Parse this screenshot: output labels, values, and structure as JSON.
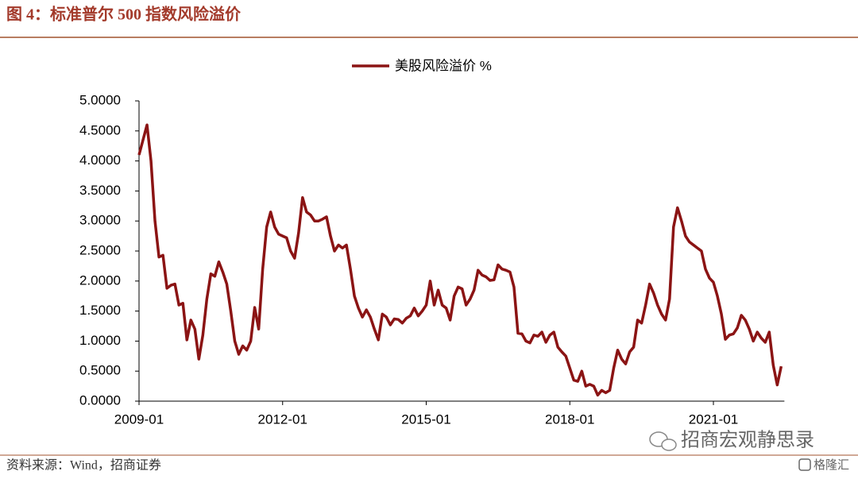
{
  "chart_data": {
    "type": "line",
    "title": "图 4：标准普尔 500 指数风险溢价",
    "source": "资料来源：Wind，招商证券",
    "watermark": "招商宏观静思录",
    "logo_text": "格隆汇",
    "categories": [
      "2009-01",
      null,
      null,
      null,
      null,
      null,
      null,
      null,
      null,
      null,
      null,
      null,
      null,
      null,
      null,
      null,
      null,
      null,
      null,
      null,
      null,
      null,
      null,
      null,
      null,
      null,
      null,
      null,
      null,
      null,
      null,
      null,
      null,
      null,
      null,
      null,
      "2012-01",
      null,
      null,
      null,
      null,
      null,
      null,
      null,
      null,
      null,
      null,
      null,
      null,
      null,
      null,
      null,
      null,
      null,
      null,
      null,
      null,
      null,
      null,
      null,
      null,
      null,
      null,
      null,
      null,
      null,
      null,
      null,
      null,
      null,
      null,
      null,
      "2015-01",
      null,
      null,
      null,
      null,
      null,
      null,
      null,
      null,
      null,
      null,
      null,
      null,
      null,
      null,
      null,
      null,
      null,
      null,
      null,
      null,
      null,
      null,
      null,
      null,
      null,
      null,
      null,
      null,
      null,
      null,
      null,
      null,
      null,
      null,
      null,
      "2018-01",
      null,
      null,
      null,
      null,
      null,
      null,
      null,
      null,
      null,
      null,
      null,
      null,
      null,
      null,
      null,
      null,
      null,
      null,
      null,
      null,
      null,
      null,
      null,
      null,
      null,
      null,
      null,
      null,
      null,
      null,
      null,
      null,
      null,
      null,
      null,
      "2021-01",
      null,
      null,
      null,
      null,
      null,
      null,
      null,
      null,
      null,
      null,
      null,
      null,
      null,
      null,
      null,
      null,
      null
    ],
    "series": [
      {
        "name": "美股风险溢价 %",
        "color": "#8b1414",
        "values": [
          4.1,
          4.35,
          4.6,
          4.0,
          3.0,
          2.4,
          2.43,
          1.88,
          1.93,
          1.95,
          1.6,
          1.63,
          1.02,
          1.35,
          1.2,
          0.7,
          1.1,
          1.7,
          2.12,
          2.08,
          2.32,
          2.15,
          1.95,
          1.5,
          1.0,
          0.78,
          0.92,
          0.85,
          1.0,
          1.56,
          1.2,
          2.2,
          2.9,
          3.15,
          2.9,
          2.78,
          2.75,
          2.72,
          2.5,
          2.38,
          2.8,
          3.39,
          3.15,
          3.1,
          3.0,
          3.0,
          3.03,
          3.07,
          2.75,
          2.5,
          2.6,
          2.55,
          2.6,
          2.2,
          1.75,
          1.55,
          1.4,
          1.52,
          1.4,
          1.2,
          1.02,
          1.45,
          1.4,
          1.27,
          1.37,
          1.36,
          1.3,
          1.38,
          1.42,
          1.55,
          1.42,
          1.5,
          1.6,
          2.0,
          1.6,
          1.85,
          1.6,
          1.55,
          1.35,
          1.75,
          1.9,
          1.87,
          1.6,
          1.7,
          1.85,
          2.18,
          2.1,
          2.07,
          2.01,
          2.02,
          2.27,
          2.2,
          2.18,
          2.15,
          1.9,
          1.13,
          1.12,
          1.0,
          0.97,
          1.1,
          1.08,
          1.15,
          0.98,
          1.1,
          1.15,
          0.9,
          0.82,
          0.75,
          0.55,
          0.35,
          0.33,
          0.5,
          0.25,
          0.28,
          0.25,
          0.1,
          0.18,
          0.14,
          0.18,
          0.55,
          0.85,
          0.7,
          0.62,
          0.82,
          0.9,
          1.35,
          1.3,
          1.6,
          1.95,
          1.8,
          1.6,
          1.45,
          1.35,
          1.7,
          2.9,
          3.22,
          3.0,
          2.75,
          2.65,
          2.6,
          2.55,
          2.5,
          2.2,
          2.05,
          1.98,
          1.75,
          1.45,
          1.03,
          1.1,
          1.12,
          1.22,
          1.43,
          1.35,
          1.2,
          1.0,
          1.15,
          1.05,
          0.98,
          1.15,
          0.6,
          0.27,
          0.58
        ]
      }
    ],
    "ylim": [
      0,
      5
    ],
    "yticks": [
      {
        "value": 0,
        "label": "0.0000"
      },
      {
        "value": 0.5,
        "label": "0.5000"
      },
      {
        "value": 1,
        "label": "1.0000"
      },
      {
        "value": 1.5,
        "label": "1.5000"
      },
      {
        "value": 2,
        "label": "2.0000"
      },
      {
        "value": 2.5,
        "label": "2.5000"
      },
      {
        "value": 3,
        "label": "3.0000"
      },
      {
        "value": 3.5,
        "label": "3.5000"
      },
      {
        "value": 4,
        "label": "4.0000"
      },
      {
        "value": 4.5,
        "label": "4.5000"
      },
      {
        "value": 5,
        "label": "5.0000"
      }
    ],
    "legend": "top",
    "grid": false
  }
}
